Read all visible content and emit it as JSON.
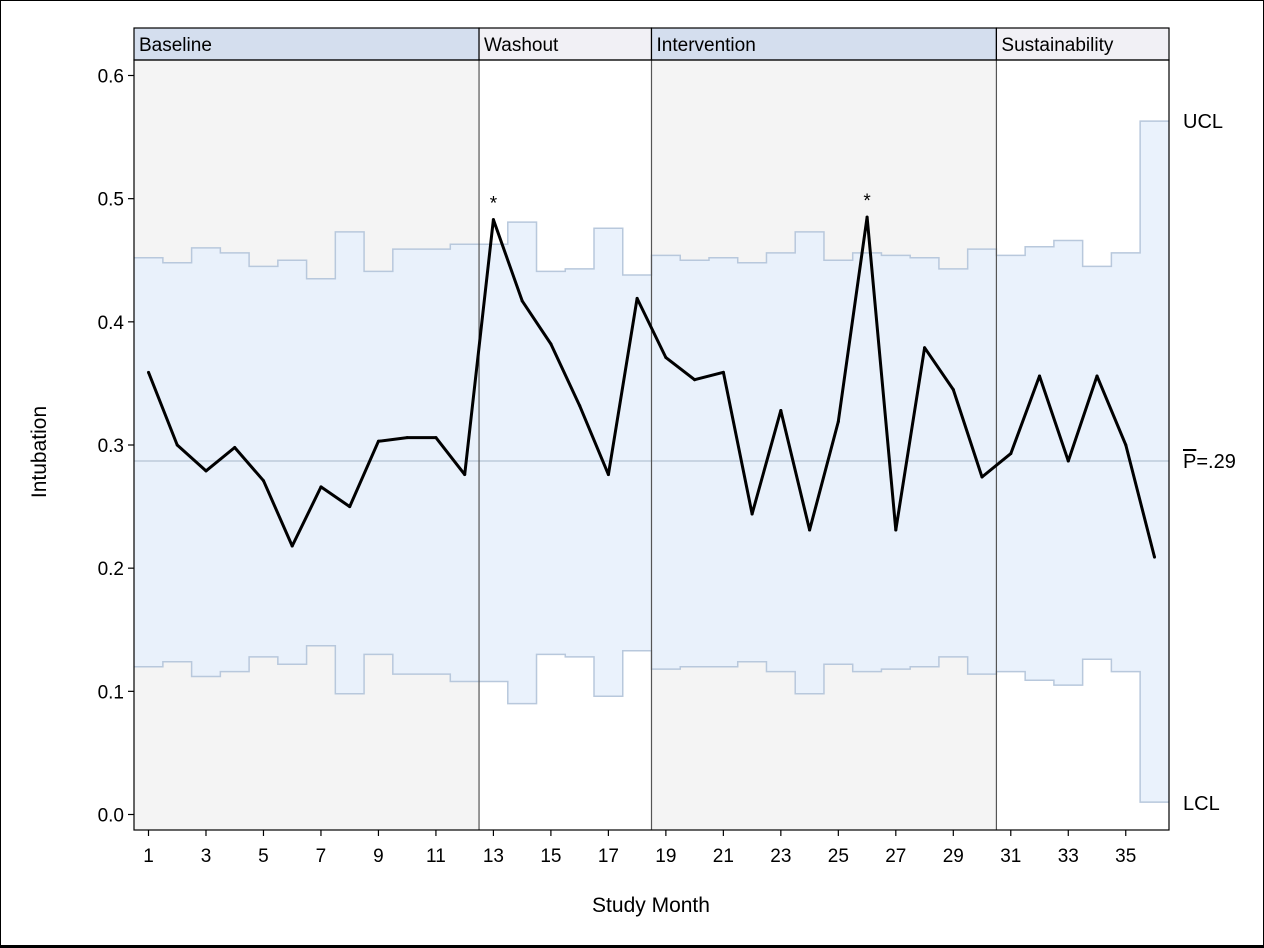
{
  "chart_data": {
    "type": "line",
    "subtype": "p-chart (statistical process control)",
    "xlabel": "Study Month",
    "ylabel": "Intubation",
    "ylim": [
      0,
      0.6
    ],
    "yticks": [
      "0.0",
      "0.1",
      "0.2",
      "0.3",
      "0.4",
      "0.5",
      "0.6"
    ],
    "ytick_values": [
      0,
      0.1,
      0.2,
      0.3,
      0.4,
      0.5,
      0.6
    ],
    "xticks": [
      "1",
      "3",
      "5",
      "7",
      "9",
      "11",
      "13",
      "15",
      "17",
      "19",
      "21",
      "23",
      "25",
      "27",
      "29",
      "31",
      "33",
      "35"
    ],
    "xtick_months": [
      1,
      3,
      5,
      7,
      9,
      11,
      13,
      15,
      17,
      19,
      21,
      23,
      25,
      27,
      29,
      31,
      33,
      35
    ],
    "phases": [
      {
        "name": "Baseline",
        "months": [
          1,
          12
        ],
        "shaded": true
      },
      {
        "name": "Washout",
        "months": [
          13,
          18
        ],
        "shaded": false
      },
      {
        "name": "Intervention",
        "months": [
          19,
          30
        ],
        "shaded": true
      },
      {
        "name": "Sustainability",
        "months": [
          31,
          36
        ],
        "shaded": false
      }
    ],
    "center_line": {
      "value": 0.287,
      "label_prefix": "P",
      "label_suffix": "=.29"
    },
    "ucl_label": "UCL",
    "lcl_label": "LCL",
    "series": [
      {
        "name": "Intubation",
        "months": [
          1,
          2,
          3,
          4,
          5,
          6,
          7,
          8,
          9,
          10,
          11,
          12,
          13,
          14,
          15,
          16,
          17,
          18,
          19,
          20,
          21,
          22,
          23,
          24,
          25,
          26,
          27,
          28,
          29,
          30,
          31,
          32,
          33,
          34,
          35,
          36
        ],
        "values": [
          0.359,
          0.3,
          0.279,
          0.298,
          0.271,
          0.218,
          0.266,
          0.25,
          0.303,
          0.306,
          0.306,
          0.276,
          0.483,
          0.417,
          0.382,
          0.332,
          0.276,
          0.419,
          0.371,
          0.353,
          0.359,
          0.244,
          0.328,
          0.231,
          0.319,
          0.485,
          0.231,
          0.379,
          0.345,
          0.274,
          0.293,
          0.356,
          0.287,
          0.356,
          0.3,
          0.209
        ]
      }
    ],
    "ucl": [
      0.452,
      0.448,
      0.46,
      0.456,
      0.445,
      0.45,
      0.435,
      0.473,
      0.441,
      0.459,
      0.459,
      0.463,
      0.463,
      0.481,
      0.441,
      0.443,
      0.476,
      0.438,
      0.454,
      0.45,
      0.452,
      0.448,
      0.456,
      0.473,
      0.45,
      0.456,
      0.454,
      0.452,
      0.443,
      0.459,
      0.454,
      0.461,
      0.466,
      0.445,
      0.456,
      0.563
    ],
    "lcl": [
      0.12,
      0.124,
      0.112,
      0.116,
      0.128,
      0.122,
      0.137,
      0.098,
      0.13,
      0.114,
      0.114,
      0.108,
      0.108,
      0.09,
      0.13,
      0.128,
      0.096,
      0.133,
      0.118,
      0.12,
      0.12,
      0.124,
      0.116,
      0.098,
      0.122,
      0.116,
      0.118,
      0.12,
      0.128,
      0.114,
      0.116,
      0.109,
      0.105,
      0.126,
      0.116,
      0.01
    ],
    "special_cause_marks": [
      {
        "month": 13,
        "symbol": "*"
      },
      {
        "month": 26,
        "symbol": "*"
      }
    ],
    "colors": {
      "line": "#000000",
      "band_fill": "#e6f0fc",
      "band_stroke": "#b8c8dc",
      "phase_shade": "#f4f4f4",
      "header_shaded": "#d4deee",
      "header_plain": "#f1f0f5",
      "center_line": "#b4c4d4"
    }
  }
}
